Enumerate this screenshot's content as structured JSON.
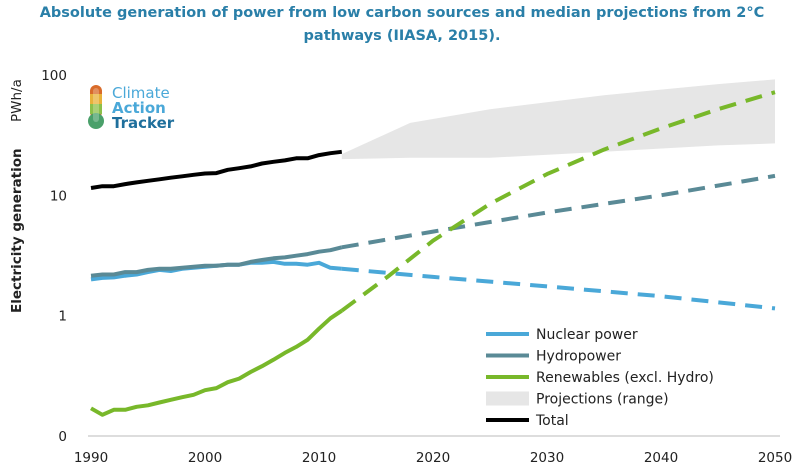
{
  "chart_data": {
    "type": "line",
    "title_line1": "Absolute generation of power from low carbon sources and median projections from 2°C",
    "title_line2": "pathways (IIASA, 2015).",
    "ylabel": "Electricity generation",
    "yunit": "PWh/a",
    "yscale": "log",
    "ylim": [
      0.1,
      100
    ],
    "xlim": [
      1990,
      2050
    ],
    "x_ticks": [
      1990,
      2000,
      2010,
      2020,
      2030,
      2040,
      2050
    ],
    "y_ticks": [
      {
        "value": 100,
        "label": "100"
      },
      {
        "value": 10,
        "label": "10"
      },
      {
        "value": 1,
        "label": "1"
      },
      {
        "value": 0.1,
        "label": "0"
      }
    ],
    "series": [
      {
        "name": "Nuclear power",
        "color": "#4aa8d8",
        "historical": {
          "x": [
            1990,
            1991,
            1992,
            1993,
            1994,
            1995,
            1996,
            1997,
            1998,
            1999,
            2000,
            2001,
            2002,
            2003,
            2004,
            2005,
            2006,
            2007,
            2008,
            2009,
            2010,
            2011,
            2012
          ],
          "y": [
            2.0,
            2.06,
            2.08,
            2.15,
            2.2,
            2.3,
            2.4,
            2.35,
            2.45,
            2.5,
            2.55,
            2.6,
            2.65,
            2.65,
            2.75,
            2.75,
            2.8,
            2.7,
            2.7,
            2.65,
            2.75,
            2.5,
            2.45
          ]
        },
        "projection": {
          "x": [
            2012,
            2020,
            2030,
            2040,
            2050
          ],
          "y": [
            2.45,
            2.1,
            1.75,
            1.45,
            1.15
          ]
        }
      },
      {
        "name": "Hydropower",
        "color": "#5a8a96",
        "historical": {
          "x": [
            1990,
            1991,
            1992,
            1993,
            1994,
            1995,
            1996,
            1997,
            1998,
            1999,
            2000,
            2001,
            2002,
            2003,
            2004,
            2005,
            2006,
            2007,
            2008,
            2009,
            2010,
            2011,
            2012
          ],
          "y": [
            2.15,
            2.2,
            2.2,
            2.3,
            2.3,
            2.4,
            2.45,
            2.45,
            2.5,
            2.55,
            2.6,
            2.6,
            2.65,
            2.65,
            2.8,
            2.9,
            3.0,
            3.05,
            3.15,
            3.25,
            3.4,
            3.5,
            3.7
          ]
        },
        "projection": {
          "x": [
            2012,
            2020,
            2030,
            2040,
            2050
          ],
          "y": [
            3.7,
            5.0,
            7.2,
            10.0,
            14.5
          ]
        }
      },
      {
        "name": "Renewables (excl. Hydro)",
        "color": "#78b82a",
        "historical": {
          "x": [
            1990,
            1991,
            1992,
            1993,
            1994,
            1995,
            1996,
            1997,
            1998,
            1999,
            2000,
            2001,
            2002,
            2003,
            2004,
            2005,
            2006,
            2007,
            2008,
            2009,
            2010,
            2011,
            2012
          ],
          "y": [
            0.17,
            0.15,
            0.165,
            0.165,
            0.175,
            0.18,
            0.19,
            0.2,
            0.21,
            0.22,
            0.24,
            0.25,
            0.28,
            0.3,
            0.34,
            0.38,
            0.43,
            0.49,
            0.55,
            0.63,
            0.78,
            0.95,
            1.1
          ]
        },
        "projection": {
          "x": [
            2012,
            2016,
            2020,
            2025,
            2030,
            2035,
            2040,
            2045,
            2050
          ],
          "y": [
            1.1,
            2.1,
            4.2,
            8.5,
            15.0,
            24.0,
            36.0,
            52.0,
            72.0
          ]
        }
      },
      {
        "name": "Projections (range)",
        "color": "#e6e6e6",
        "x": [
          2012,
          2018,
          2025,
          2035,
          2045,
          2050
        ],
        "lower": [
          20,
          20.5,
          20.5,
          23,
          26,
          27
        ],
        "upper": [
          22,
          40,
          52,
          68,
          84,
          92
        ]
      },
      {
        "name": "Total",
        "color": "#000000",
        "historical": {
          "x": [
            1990,
            1991,
            1992,
            1993,
            1994,
            1995,
            1996,
            1997,
            1998,
            1999,
            2000,
            2001,
            2002,
            2003,
            2004,
            2005,
            2006,
            2007,
            2008,
            2009,
            2010,
            2011,
            2012
          ],
          "y": [
            11.5,
            11.9,
            11.9,
            12.4,
            12.8,
            13.2,
            13.6,
            14.0,
            14.4,
            14.8,
            15.2,
            15.3,
            16.3,
            16.8,
            17.4,
            18.4,
            19.0,
            19.5,
            20.3,
            20.3,
            21.6,
            22.4,
            23.0
          ]
        }
      }
    ],
    "legend": [
      {
        "label": "Nuclear power",
        "color": "#4aa8d8",
        "kind": "line"
      },
      {
        "label": "Hydropower",
        "color": "#5a8a96",
        "kind": "line"
      },
      {
        "label": "Renewables (excl. Hydro)",
        "color": "#78b82a",
        "kind": "line"
      },
      {
        "label": "Projections (range)",
        "color": "#e6e6e6",
        "kind": "band"
      },
      {
        "label": "Total",
        "color": "#000000",
        "kind": "line"
      }
    ]
  },
  "logo": {
    "line1": "Climate",
    "line2": "Action",
    "line3": "Tracker",
    "color_light": "#4aa8d8",
    "color_dark": "#1f6f9c"
  }
}
